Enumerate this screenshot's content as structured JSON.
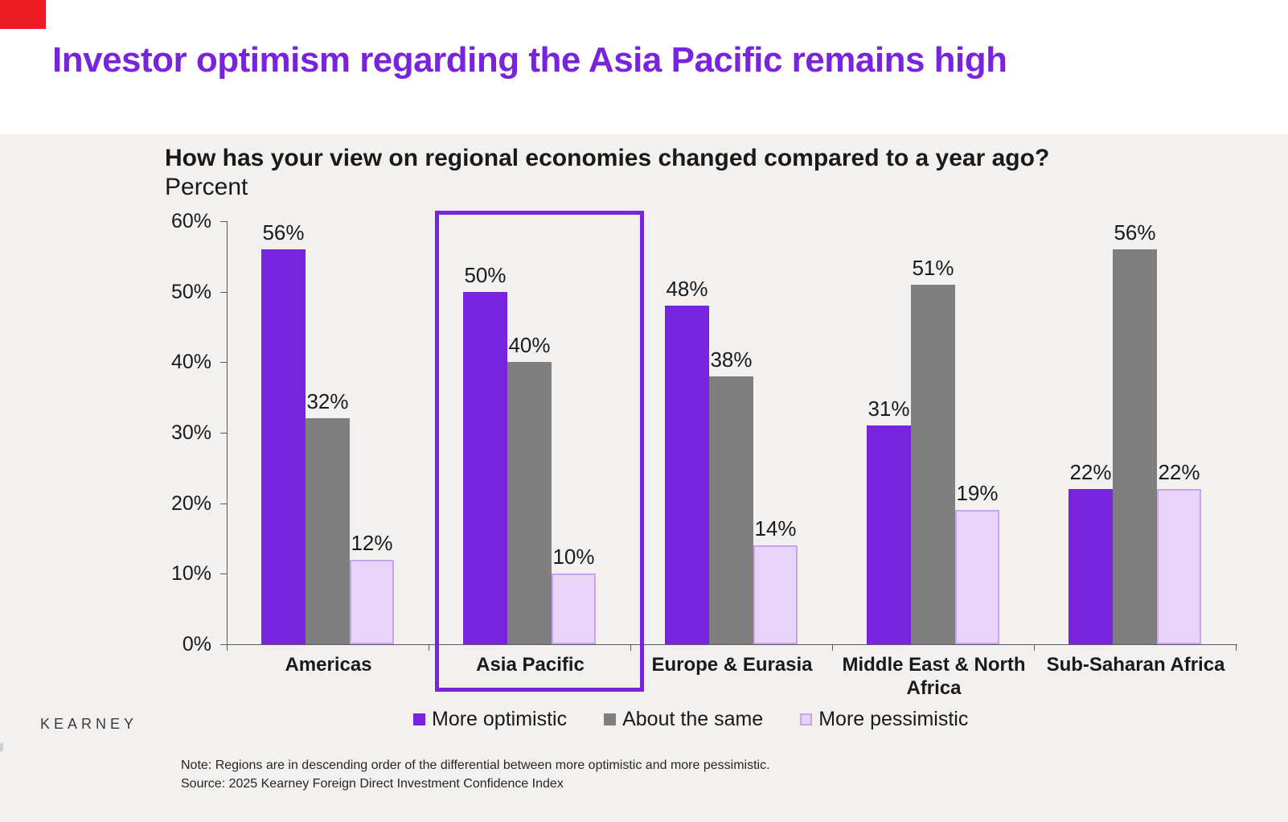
{
  "slide": {
    "title": "Investor optimism regarding the Asia Pacific remains high",
    "accent_color": "#7823DC",
    "red_marker_color": "#ED1C24",
    "background_color": "#F2F1F0",
    "logo_text": "KEARNEY"
  },
  "chart": {
    "title": "How has your view on regional economies changed compared to a year ago?",
    "subtitle": "Percent",
    "note_line1": "Note: Regions are in descending order of the differential between more optimistic and more pessimistic.",
    "note_line2": "Source: 2025 Kearney Foreign Direct Investment Confidence Index"
  },
  "chart_data": {
    "type": "bar",
    "title": "How has your view on regional economies changed compared to a year ago?",
    "ylabel": "Percent",
    "categories": [
      "Americas",
      "Asia Pacific",
      "Europe & Eurasia",
      "Middle East & North Africa",
      "Sub-Saharan Africa"
    ],
    "series": [
      {
        "name": "More optimistic",
        "color": "#7823DC",
        "border_color": "#7823DC",
        "values": [
          56,
          50,
          48,
          31,
          22
        ]
      },
      {
        "name": "About the same",
        "color": "#7F7F7F",
        "border_color": "#7F7F7F",
        "values": [
          32,
          40,
          38,
          51,
          56
        ]
      },
      {
        "name": "More pessimistic",
        "color": "#E7D4F8",
        "border_color": "#C9A4EC",
        "values": [
          12,
          10,
          14,
          19,
          22
        ]
      }
    ],
    "value_suffix": "%",
    "ylim": [
      0,
      60
    ],
    "ytick_labels": [
      "0%",
      "10%",
      "20%",
      "30%",
      "40%",
      "50%",
      "60%"
    ],
    "grid": false,
    "legend_position": "bottom",
    "highlighted_category": "Asia Pacific",
    "highlight_box_color": "#7823DC"
  }
}
